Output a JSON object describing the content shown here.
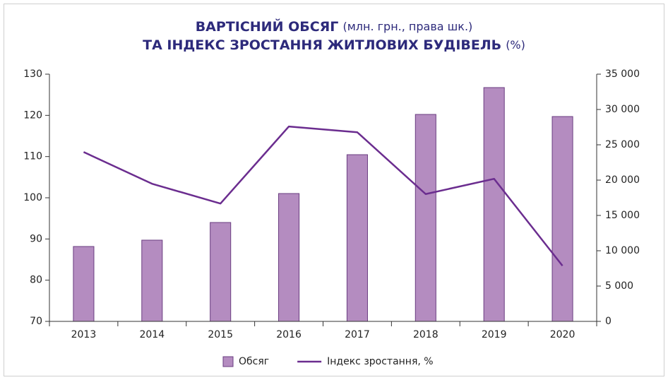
{
  "chart_data": {
    "type": "bar",
    "title_lines": [
      [
        "ВАРТІСНИЙ ОБСЯГ",
        "(млн. грн., права шк.)"
      ],
      [
        "ТА ІНДЕКС ЗРОСТАННЯ ЖИТЛОВИХ БУДІВЕЛЬ",
        "(%)"
      ]
    ],
    "categories": [
      "2013",
      "2014",
      "2015",
      "2016",
      "2017",
      "2018",
      "2019",
      "2020"
    ],
    "series": [
      {
        "name": "Обсяг",
        "type": "bar",
        "axis": "y2",
        "color": "#b48cc0",
        "edge": "#6a3d80",
        "values": [
          10600,
          11500,
          14000,
          18100,
          23600,
          29300,
          33100,
          29000
        ]
      },
      {
        "name": "Індекс зростання, %",
        "type": "line",
        "color": "#6b2d8f",
        "values": [
          111.1,
          103.4,
          98.6,
          117.3,
          115.9,
          100.9,
          104.6,
          83.5
        ]
      }
    ],
    "ylim": [
      70,
      130
    ],
    "yticks": [
      70,
      80,
      90,
      100,
      110,
      120,
      130
    ],
    "y2lim": [
      0,
      35000
    ],
    "y2ticks": [
      0,
      {
        "value": 5000,
        "label": "5 000"
      },
      {
        "value": 10000,
        "label": "10 000"
      },
      {
        "value": 15000,
        "label": "15 000"
      },
      {
        "value": 20000,
        "label": "20 000"
      },
      {
        "value": 25000,
        "label": "25 000"
      },
      {
        "value": 30000,
        "label": "30 000"
      },
      {
        "value": 35000,
        "label": "35 000"
      }
    ]
  }
}
